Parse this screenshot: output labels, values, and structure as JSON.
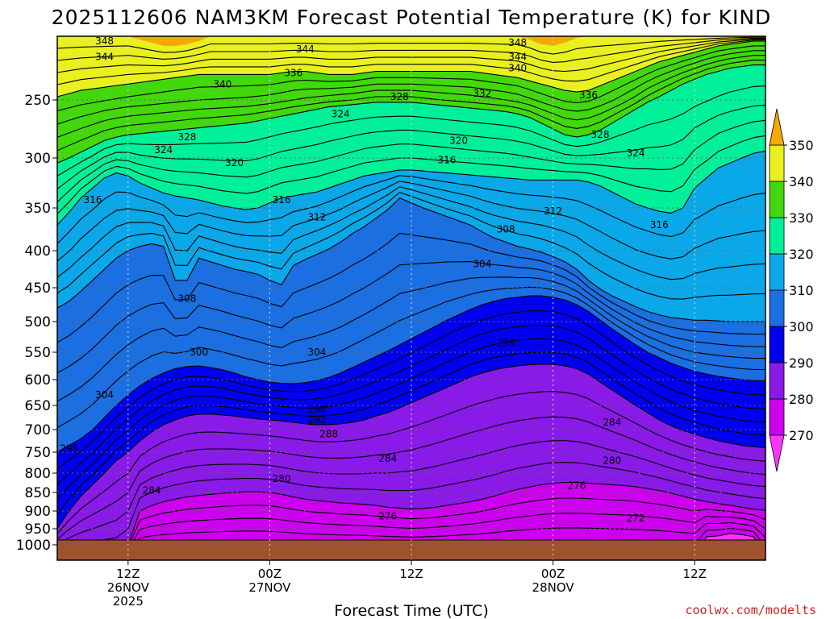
{
  "chart_data": {
    "type": "contour",
    "title": "2025112606 NAM3KM Forecast Potential Temperature (K) for KIND",
    "xlabel": "Forecast Time (UTC)",
    "credit": "coolwx.com/modelts",
    "x_ticks": [
      {
        "label": "12Z",
        "sub": "26NOV",
        "sub2": "2025",
        "hour": 6
      },
      {
        "label": "00Z",
        "sub": "27NOV",
        "sub2": "",
        "hour": 18
      },
      {
        "label": "12Z",
        "sub": "",
        "sub2": "",
        "hour": 30
      },
      {
        "label": "00Z",
        "sub": "28NOV",
        "sub2": "",
        "hour": 42
      },
      {
        "label": "12Z",
        "sub": "",
        "sub2": "",
        "hour": 54
      }
    ],
    "x_range_hours": [
      0,
      60
    ],
    "y_axis": "pressure (hPa), reversed",
    "y_ticks": [
      250,
      300,
      350,
      400,
      450,
      500,
      550,
      600,
      650,
      700,
      750,
      800,
      850,
      900,
      950,
      1000
    ],
    "y_range": [
      210,
      1030
    ],
    "colorbar": {
      "ticks": [
        350,
        340,
        330,
        320,
        310,
        300,
        290,
        280,
        270
      ],
      "bands": [
        {
          "from": 265,
          "to": 270,
          "color": "#ff33ff"
        },
        {
          "from": 270,
          "to": 280,
          "color": "#cc00ee"
        },
        {
          "from": 280,
          "to": 290,
          "color": "#8a1ae8"
        },
        {
          "from": 290,
          "to": 300,
          "color": "#0000ee"
        },
        {
          "from": 300,
          "to": 310,
          "color": "#1b6fe0"
        },
        {
          "from": 310,
          "to": 320,
          "color": "#0aa8e8"
        },
        {
          "from": 320,
          "to": 330,
          "color": "#00f09a"
        },
        {
          "from": 330,
          "to": 340,
          "color": "#42d80d"
        },
        {
          "from": 340,
          "to": 350,
          "color": "#e8f020"
        },
        {
          "from": 350,
          "to": 355,
          "color": "#f5a800"
        }
      ]
    },
    "ground_color": "#a0522d",
    "series": [
      {
        "value": 270,
        "p": [
          1030,
          1030,
          1030,
          1030,
          1030,
          1030,
          1030,
          1030,
          1030,
          1030,
          1030,
          1030,
          1030,
          1030,
          1030,
          1030,
          1030,
          1030,
          1030,
          1030,
          1030,
          1030,
          1030,
          1030,
          1030,
          1030,
          1030,
          1030,
          1030,
          1030,
          1030,
          1030,
          1030,
          1030,
          1030,
          1030,
          1030,
          1030,
          1030,
          1030,
          1030,
          1030,
          1030,
          1030,
          1030,
          1030,
          1030,
          1030,
          1030,
          1030,
          1030,
          1030,
          1030,
          1030,
          1030,
          975,
          972,
          965,
          968,
          975,
          1030
        ]
      },
      {
        "value": 280,
        "p": [
          1030,
          1030,
          1030,
          1030,
          1030,
          1030,
          1000,
          900,
          885,
          875,
          868,
          862,
          858,
          855,
          852,
          850,
          848,
          848,
          850,
          855,
          862,
          868,
          872,
          875,
          878,
          880,
          882,
          885,
          890,
          892,
          895,
          893,
          890,
          885,
          880,
          875,
          868,
          860,
          850,
          842,
          836,
          830,
          826,
          824,
          824,
          826,
          828,
          830,
          832,
          835,
          840,
          845,
          852,
          860,
          868,
          875,
          880,
          885,
          890,
          895,
          898
        ]
      },
      {
        "value": 290,
        "p": [
          950,
          900,
          860,
          830,
          800,
          770,
          750,
          725,
          705,
          690,
          680,
          672,
          668,
          668,
          670,
          672,
          675,
          678,
          680,
          682,
          685,
          688,
          690,
          690,
          688,
          685,
          680,
          672,
          665,
          655,
          645,
          635,
          625,
          615,
          605,
          595,
          588,
          582,
          578,
          575,
          573,
          572,
          572,
          575,
          580,
          590,
          605,
          620,
          635,
          650,
          665,
          680,
          692,
          702,
          710,
          718,
          725,
          730,
          735,
          738,
          740
        ]
      },
      {
        "value": 300,
        "p": [
          750,
          735,
          720,
          700,
          675,
          650,
          630,
          612,
          598,
          588,
          580,
          576,
          575,
          578,
          582,
          588,
          595,
          600,
          605,
          607,
          608,
          606,
          602,
          596,
          588,
          578,
          568,
          558,
          548,
          538,
          528,
          518,
          508,
          498,
          490,
          482,
          475,
          470,
          466,
          464,
          462,
          462,
          464,
          468,
          475,
          485,
          498,
          512,
          525,
          538,
          550,
          560,
          570,
          578,
          585,
          590,
          594,
          597,
          600,
          602,
          602
        ]
      },
      {
        "value": 310,
        "p": [
          480,
          470,
          455,
          440,
          425,
          410,
          400,
          395,
          392,
          395,
          440,
          440,
          410,
          415,
          420,
          425,
          428,
          432,
          440,
          446,
          420,
          412,
          405,
          398,
          390,
          380,
          372,
          362,
          352,
          340,
          345,
          350,
          355,
          360,
          365,
          370,
          378,
          385,
          390,
          395,
          398,
          402,
          408,
          415,
          425,
          440,
          452,
          462,
          470,
          478,
          485,
          490,
          494,
          496,
          498,
          498,
          499,
          500,
          500,
          500,
          500
        ]
      },
      {
        "value": 320,
        "p": [
          370,
          355,
          340,
          330,
          320,
          315,
          318,
          325,
          330,
          335,
          338,
          340,
          342,
          345,
          348,
          350,
          352,
          350,
          345,
          340,
          338,
          336,
          334,
          330,
          326,
          322,
          318,
          316,
          314,
          312,
          312,
          313,
          314,
          315,
          316,
          317,
          318,
          319,
          320,
          321,
          322,
          322,
          322,
          322,
          322,
          324,
          328,
          334,
          340,
          346,
          350,
          354,
          356,
          350,
          330,
          320,
          310,
          305,
          300,
          296,
          294
        ]
      },
      {
        "value": 330,
        "p": [
          305,
          300,
          295,
          290,
          285,
          282,
          280,
          279,
          278,
          277,
          276,
          275,
          274,
          273,
          272,
          271,
          270,
          268,
          266,
          264,
          262,
          260,
          258,
          256,
          255,
          254,
          253,
          252,
          252,
          252,
          252,
          253,
          254,
          255,
          256,
          257,
          258,
          259,
          260,
          262,
          265,
          270,
          275,
          280,
          282,
          280,
          276,
          270,
          264,
          258,
          252,
          248,
          244,
          240,
          237,
          234,
          232,
          230,
          229,
          228,
          228
        ]
      },
      {
        "value": 340,
        "p": [
          248,
          246,
          244,
          243,
          242,
          241,
          240,
          239,
          238,
          237,
          236,
          235,
          234,
          234,
          234,
          234,
          234,
          234,
          234,
          233,
          232,
          232,
          233,
          234,
          234,
          234,
          233,
          232,
          232,
          232,
          232,
          232,
          232,
          232,
          232,
          232,
          233,
          234,
          235,
          236,
          238,
          240,
          242,
          244,
          245,
          244,
          241,
          238,
          235,
          232,
          229,
          226,
          224,
          222,
          220,
          218,
          216,
          215,
          214,
          213,
          213
        ]
      },
      {
        "value": 350,
        "p": [
          210,
          210,
          210,
          210,
          210,
          210,
          210,
          212,
          214,
          216,
          216,
          215,
          213,
          210,
          210,
          210,
          210,
          210,
          210,
          210,
          210,
          210,
          210,
          210,
          210,
          210,
          210,
          210,
          210,
          210,
          210,
          210,
          210,
          210,
          210,
          210,
          210,
          210,
          210,
          210,
          212,
          215,
          216,
          214,
          211,
          210,
          210,
          210,
          210,
          210,
          210,
          210,
          210,
          210,
          210,
          210,
          210,
          210,
          210,
          210,
          210
        ]
      }
    ],
    "contour_labels": [
      {
        "text": "348",
        "hour": 4,
        "p": 213
      },
      {
        "text": "344",
        "hour": 4,
        "p": 223
      },
      {
        "text": "344",
        "hour": 21,
        "p": 218
      },
      {
        "text": "348",
        "hour": 39,
        "p": 214
      },
      {
        "text": "344",
        "hour": 39,
        "p": 223
      },
      {
        "text": "340",
        "hour": 39,
        "p": 230
      },
      {
        "text": "340",
        "hour": 14,
        "p": 240
      },
      {
        "text": "336",
        "hour": 20,
        "p": 233
      },
      {
        "text": "328",
        "hour": 29,
        "p": 248
      },
      {
        "text": "332",
        "hour": 36,
        "p": 246
      },
      {
        "text": "336",
        "hour": 45,
        "p": 247
      },
      {
        "text": "324",
        "hour": 24,
        "p": 262
      },
      {
        "text": "328",
        "hour": 11,
        "p": 282
      },
      {
        "text": "328",
        "hour": 46,
        "p": 280
      },
      {
        "text": "320",
        "hour": 34,
        "p": 285
      },
      {
        "text": "324",
        "hour": 9,
        "p": 293
      },
      {
        "text": "324",
        "hour": 49,
        "p": 296
      },
      {
        "text": "316",
        "hour": 33,
        "p": 302
      },
      {
        "text": "320",
        "hour": 15,
        "p": 305
      },
      {
        "text": "316",
        "hour": 3,
        "p": 342
      },
      {
        "text": "316",
        "hour": 19,
        "p": 342
      },
      {
        "text": "312",
        "hour": 22,
        "p": 361
      },
      {
        "text": "312",
        "hour": 42,
        "p": 354
      },
      {
        "text": "316",
        "hour": 51,
        "p": 370
      },
      {
        "text": "308",
        "hour": 38,
        "p": 375
      },
      {
        "text": "304",
        "hour": 36,
        "p": 418
      },
      {
        "text": "308",
        "hour": 11,
        "p": 466
      },
      {
        "text": "300",
        "hour": 12,
        "p": 550
      },
      {
        "text": "304",
        "hour": 22,
        "p": 550
      },
      {
        "text": "296",
        "hour": 38,
        "p": 535
      },
      {
        "text": "304",
        "hour": 4,
        "p": 630
      },
      {
        "text": "296",
        "hour": 22,
        "p": 658
      },
      {
        "text": "292",
        "hour": 22,
        "p": 680
      },
      {
        "text": "288",
        "hour": 23,
        "p": 710
      },
      {
        "text": "284",
        "hour": 47,
        "p": 685
      },
      {
        "text": "296",
        "hour": 1,
        "p": 742
      },
      {
        "text": "284",
        "hour": 28,
        "p": 765
      },
      {
        "text": "280",
        "hour": 19,
        "p": 815
      },
      {
        "text": "280",
        "hour": 47,
        "p": 770
      },
      {
        "text": "284",
        "hour": 8,
        "p": 845
      },
      {
        "text": "276",
        "hour": 44,
        "p": 832
      },
      {
        "text": "276",
        "hour": 28,
        "p": 915
      },
      {
        "text": "272",
        "hour": 49,
        "p": 920
      }
    ]
  }
}
